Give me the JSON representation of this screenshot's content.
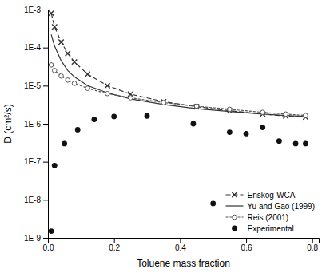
{
  "chart_data": {
    "type": "line",
    "xlabel": "Toluene mass fraction",
    "ylabel": "D (cm²/s)",
    "log": "y",
    "grid": false,
    "legend": "lower right",
    "xlim": [
      0.0,
      0.82
    ],
    "xticks": [
      {
        "value": 0.0,
        "label": "0.0"
      },
      0.2,
      0.4,
      0.6,
      0.8
    ],
    "ylim": [
      1e-09,
      0.001
    ],
    "yticks": [
      {
        "value": 1e-09,
        "label": "1E-9"
      },
      {
        "value": 1e-08,
        "label": "1E-8"
      },
      {
        "value": 1e-07,
        "label": "1E-7"
      },
      {
        "value": 1e-06,
        "label": "1E-6"
      },
      {
        "value": 1e-05,
        "label": "1E-5"
      },
      {
        "value": 0.0001,
        "label": "1E-4"
      },
      {
        "value": 0.001,
        "label": "1E-3"
      }
    ],
    "series": [
      {
        "name": "Enskog-WCA",
        "color": "#333333",
        "marker": "x",
        "line_style": "dashed",
        "x": [
          0.01,
          0.02,
          0.04,
          0.06,
          0.08,
          0.12,
          0.18,
          0.25,
          0.35,
          0.45,
          0.55,
          0.65,
          0.72,
          0.78
        ],
        "values": [
          0.0008,
          0.00035,
          0.00014,
          7e-05,
          4.2e-05,
          2e-05,
          1e-05,
          6e-06,
          3.8e-06,
          2.8e-06,
          2.2e-06,
          1.8e-06,
          1.6e-06,
          1.5e-06
        ]
      },
      {
        "name": "Yu and Gao (1999)",
        "color": "#333333",
        "marker": "none",
        "line_style": "solid",
        "x": [
          0.01,
          0.02,
          0.04,
          0.06,
          0.08,
          0.12,
          0.18,
          0.25,
          0.35,
          0.45,
          0.55,
          0.65,
          0.72,
          0.78
        ],
        "values": [
          0.00022,
          0.00011,
          4.5e-05,
          2.5e-05,
          1.7e-05,
          1e-05,
          6.5e-06,
          4.5e-06,
          3.2e-06,
          2.5e-06,
          2.1e-06,
          1.8e-06,
          1.65e-06,
          1.55e-06
        ]
      },
      {
        "name": "Reis (2001)",
        "color": "#555555",
        "marker": "circle-open",
        "line_style": "dotted",
        "x": [
          0.01,
          0.02,
          0.04,
          0.06,
          0.08,
          0.12,
          0.18,
          0.25,
          0.35,
          0.45,
          0.55,
          0.65,
          0.72,
          0.78
        ],
        "values": [
          3.5e-05,
          2.5e-05,
          1.8e-05,
          1.4e-05,
          1.15e-05,
          8.5e-06,
          6.2e-06,
          4.8e-06,
          3.6e-06,
          2.9e-06,
          2.4e-06,
          2e-06,
          1.8e-06,
          1.65e-06
        ]
      },
      {
        "name": "Experimental",
        "color": "#111111",
        "marker": "circle",
        "line_style": "none",
        "x": [
          0.01,
          0.02,
          0.05,
          0.09,
          0.14,
          0.2,
          0.3,
          0.44,
          0.5,
          0.55,
          0.6,
          0.65,
          0.7,
          0.75,
          0.78
        ],
        "values": [
          1.5e-09,
          8e-08,
          3e-07,
          7e-07,
          1.3e-06,
          1.55e-06,
          1.6e-06,
          1e-06,
          8e-09,
          6e-07,
          5.5e-07,
          8e-07,
          3.5e-07,
          3e-07,
          3e-07
        ]
      }
    ]
  }
}
